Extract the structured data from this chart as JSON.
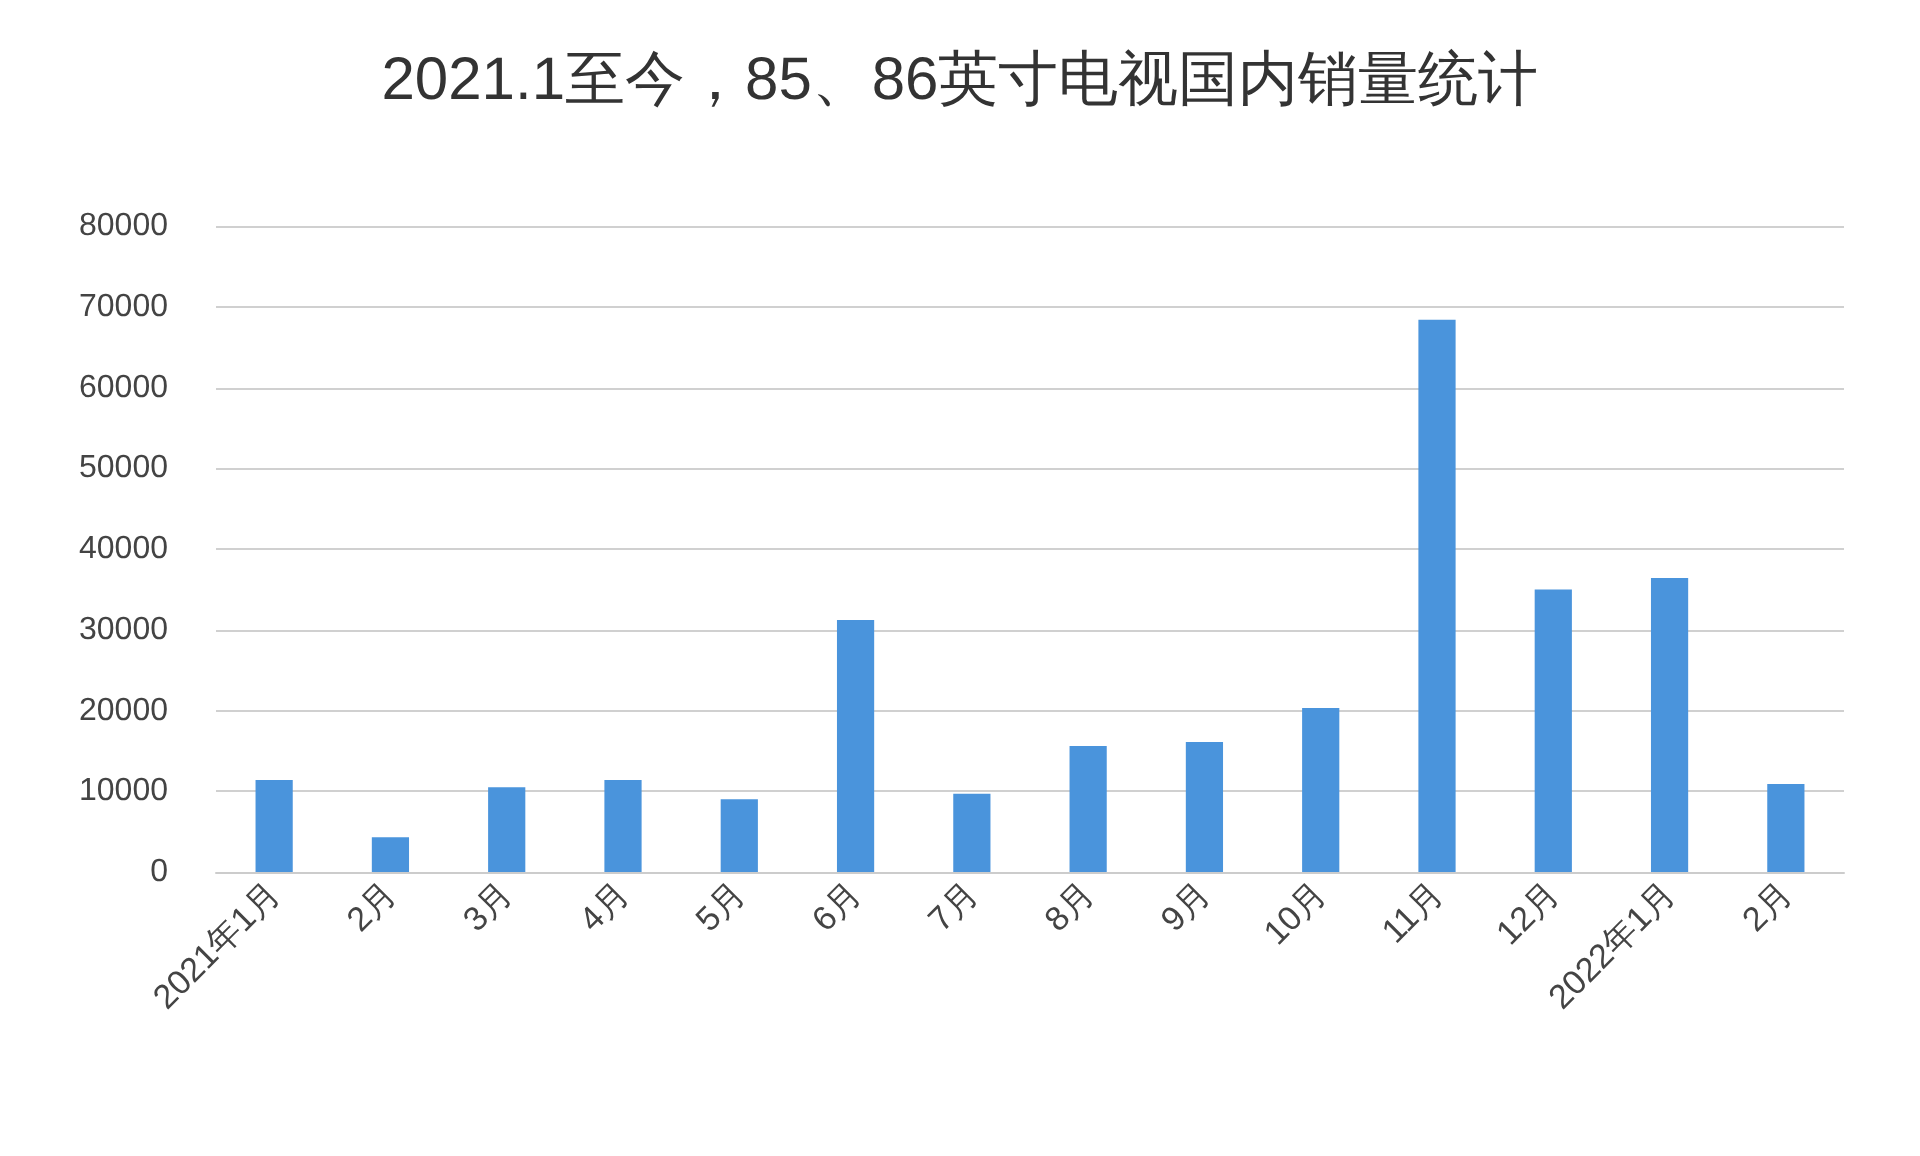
{
  "chart_data": {
    "type": "bar",
    "title": "2021.1至今，85、86英寸电视国内销量统计",
    "categories": [
      "2021年1月",
      "2月",
      "3月",
      "4月",
      "5月",
      "6月",
      "7月",
      "8月",
      "9月",
      "10月",
      "11月",
      "12月",
      "2022年1月",
      "2月"
    ],
    "values": [
      11400,
      4300,
      10500,
      11400,
      9000,
      31200,
      9700,
      15600,
      16100,
      20300,
      68400,
      35000,
      36400,
      10900
    ],
    "color": "#4a94dc",
    "ylim": [
      0,
      80000
    ],
    "yticks": [
      0,
      10000,
      20000,
      30000,
      40000,
      50000,
      60000,
      70000,
      80000
    ],
    "grid": "y"
  }
}
